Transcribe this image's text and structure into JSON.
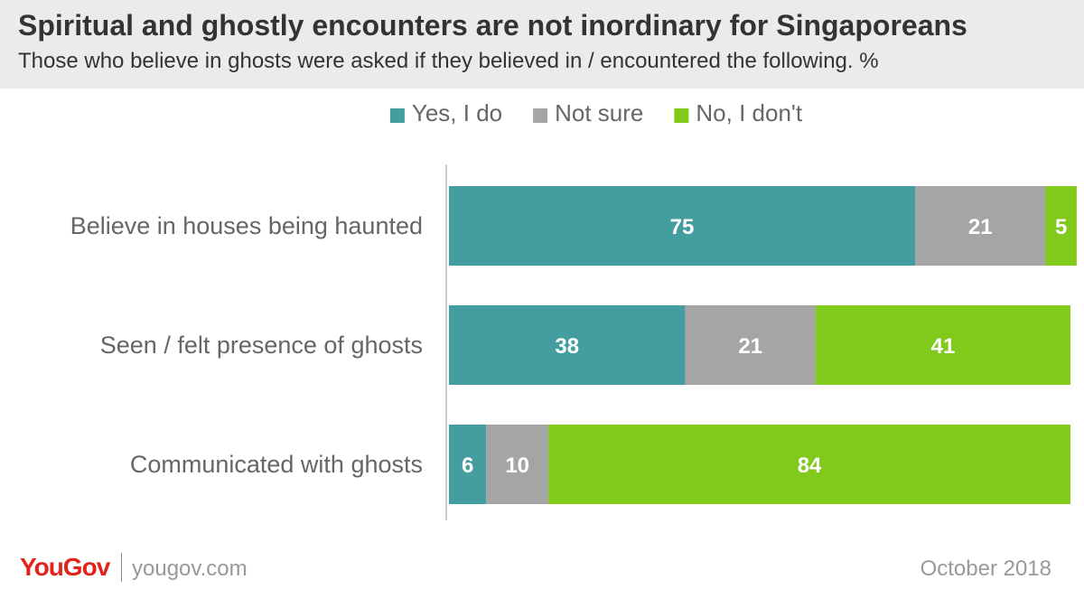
{
  "title": "Spiritual and ghostly encounters are not inordinary for Singaporeans",
  "subtitle": "Those who believe in ghosts were asked if they believed in / encountered the following. %",
  "footer": {
    "brand": "YouGov",
    "site": "yougov.com",
    "date": "October 2018"
  },
  "chart_data": {
    "type": "bar",
    "orientation": "horizontal",
    "stacked": true,
    "legend_position": "top",
    "categories": [
      "Believe in houses being haunted",
      "Seen / felt presence of ghosts",
      "Communicated with ghosts"
    ],
    "series": [
      {
        "name": "Yes, I do",
        "values": [
          75,
          38,
          6
        ],
        "color": "#449ea0"
      },
      {
        "name": "Not sure",
        "values": [
          21,
          21,
          10
        ],
        "color": "#a5a5a5"
      },
      {
        "name": "No, I don't",
        "values": [
          5,
          41,
          84
        ],
        "color": "#81c91b"
      }
    ],
    "data_labels": [
      [
        "75",
        "21",
        "5"
      ],
      [
        "38",
        "21",
        "41"
      ],
      [
        "6",
        "10",
        "84"
      ]
    ],
    "xlim": [
      0,
      100
    ],
    "grid": false
  }
}
